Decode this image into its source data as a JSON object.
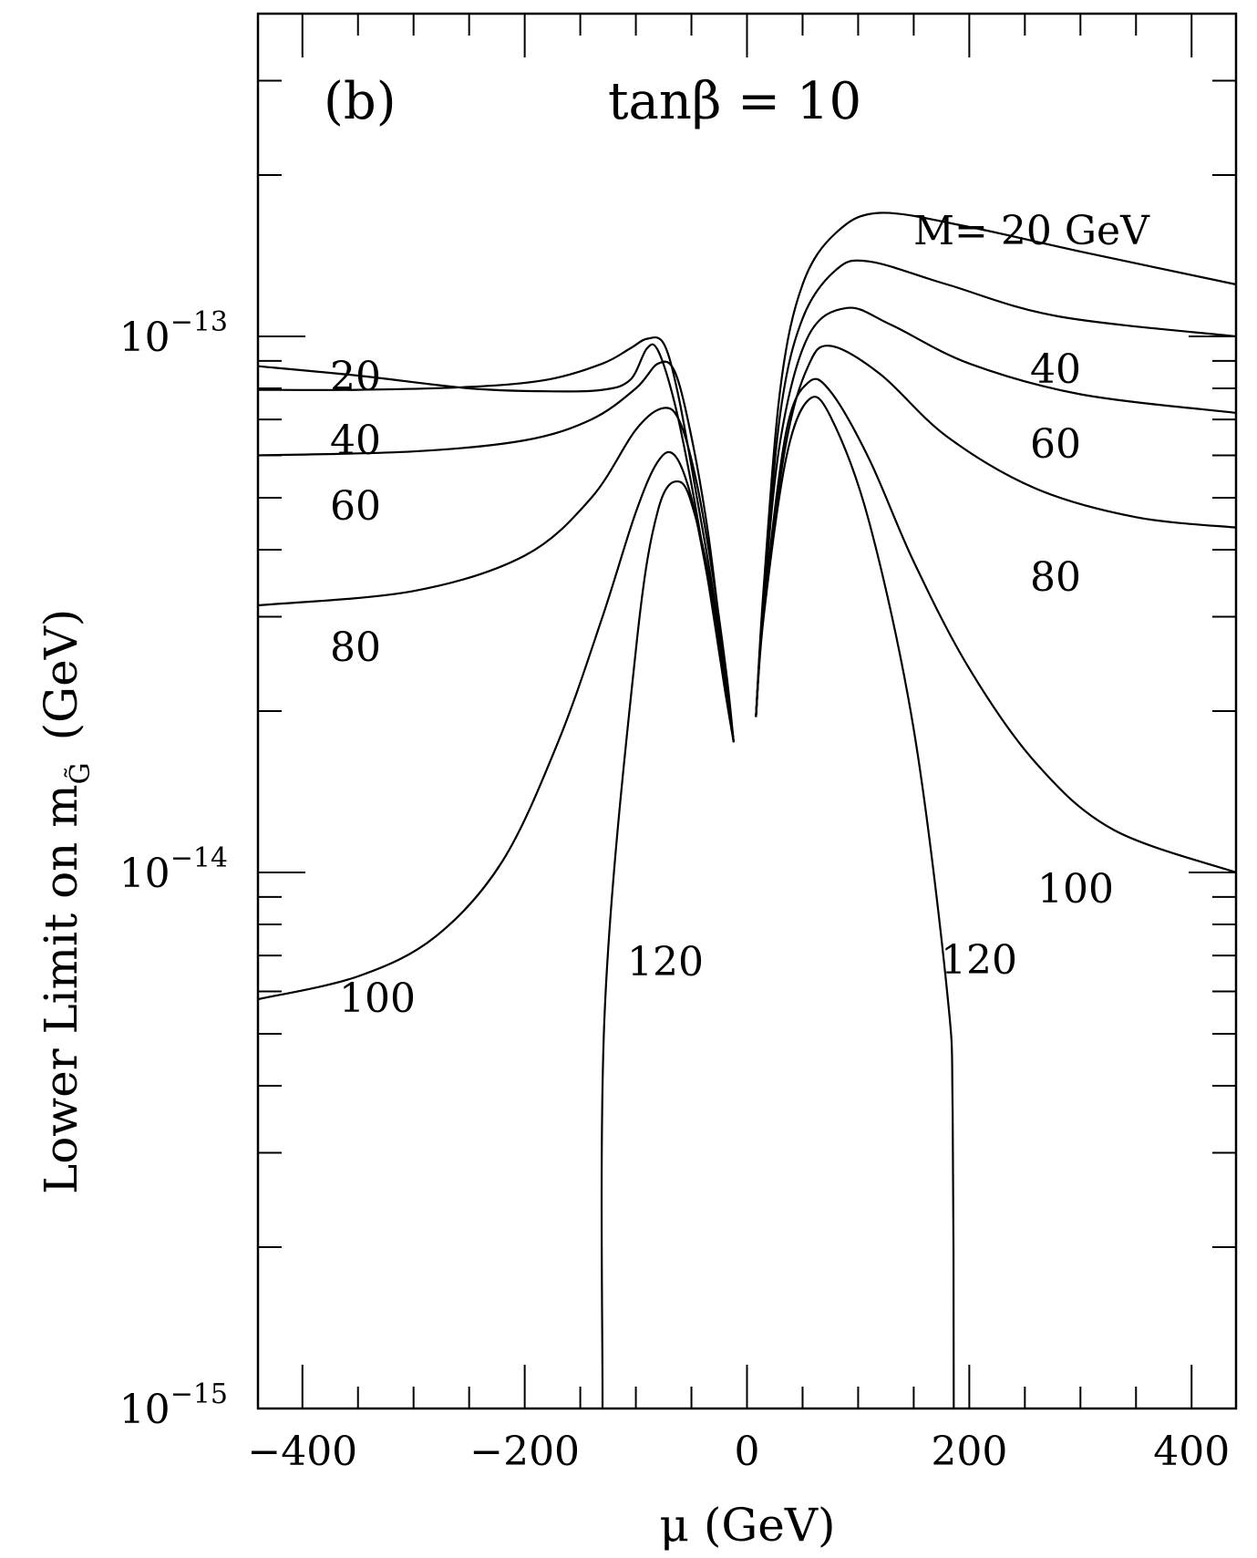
{
  "chart_data": {
    "type": "line",
    "panel_label": "(b)",
    "title": "tanβ = 10",
    "xlabel": "μ (GeV)",
    "ylabel": "Lower Limit on m_G̃ (GeV)",
    "ylabel_prefix": "Lower Limit on m",
    "ylabel_sub": "G̃",
    "ylabel_suffix": "(GeV)",
    "xlim": [
      -440,
      440
    ],
    "ylim": [
      1e-15,
      4e-13
    ],
    "yscale": "log",
    "grid": false,
    "x_ticks": [
      {
        "value": -400,
        "label": "−400"
      },
      {
        "value": -200,
        "label": "−200"
      },
      {
        "value": 0,
        "label": "0"
      },
      {
        "value": 200,
        "label": "200"
      },
      {
        "value": 400,
        "label": "400"
      }
    ],
    "y_ticks": [
      {
        "value": 1e-13,
        "label": "10",
        "exponent": "−13"
      },
      {
        "value": 1e-14,
        "label": "10",
        "exponent": "−14"
      },
      {
        "value": 1e-15,
        "label": "10",
        "exponent": "−15"
      }
    ],
    "legend_label": "M= 20 GeV",
    "series": [
      {
        "name": "20",
        "right_label": "M= 20 GeV",
        "left_label": "20",
        "left": [
          [
            -440,
            8.8e-14
          ],
          [
            -350,
            8.45e-14
          ],
          [
            -250,
            8e-14
          ],
          [
            -180,
            7.9e-14
          ],
          [
            -130,
            7.95e-14
          ],
          [
            -105,
            8.3e-14
          ],
          [
            -90,
            9.5e-14
          ],
          [
            -80,
            9.4e-14
          ],
          [
            -65,
            7.5e-14
          ],
          [
            -50,
            5.3e-14
          ],
          [
            -35,
            3.5e-14
          ],
          [
            -20,
            2.2e-14
          ],
          [
            -12,
            1.75e-14
          ]
        ],
        "right": [
          [
            8,
            1.95e-14
          ],
          [
            15,
            3.4e-14
          ],
          [
            30,
            8e-14
          ],
          [
            50,
            1.25e-13
          ],
          [
            80,
            1.56e-13
          ],
          [
            120,
            1.7e-13
          ],
          [
            200,
            1.6e-13
          ],
          [
            300,
            1.44e-13
          ],
          [
            440,
            1.25e-13
          ]
        ]
      },
      {
        "name": "40",
        "right_label": "40",
        "left_label": "40",
        "left": [
          [
            -440,
            7.95e-14
          ],
          [
            -350,
            7.95e-14
          ],
          [
            -250,
            8.05e-14
          ],
          [
            -180,
            8.3e-14
          ],
          [
            -130,
            8.9e-14
          ],
          [
            -105,
            9.5e-14
          ],
          [
            -90,
            9.9e-14
          ],
          [
            -75,
            9.7e-14
          ],
          [
            -62,
            7.8e-14
          ],
          [
            -45,
            5e-14
          ],
          [
            -30,
            3.3e-14
          ],
          [
            -18,
            2.2e-14
          ],
          [
            -12,
            1.75e-14
          ]
        ],
        "right": [
          [
            8,
            1.95e-14
          ],
          [
            15,
            3.3e-14
          ],
          [
            30,
            7.2e-14
          ],
          [
            50,
            1.08e-13
          ],
          [
            80,
            1.33e-13
          ],
          [
            110,
            1.38e-13
          ],
          [
            180,
            1.25e-13
          ],
          [
            280,
            1.09e-13
          ],
          [
            440,
            1e-13
          ]
        ]
      },
      {
        "name": "60",
        "right_label": "60",
        "left_label": "60",
        "left": [
          [
            -440,
            6e-14
          ],
          [
            -300,
            6.1e-14
          ],
          [
            -200,
            6.4e-14
          ],
          [
            -140,
            7e-14
          ],
          [
            -100,
            8e-14
          ],
          [
            -80,
            8.9e-14
          ],
          [
            -65,
            8.6e-14
          ],
          [
            -50,
            6.5e-14
          ],
          [
            -35,
            4.3e-14
          ],
          [
            -22,
            2.6e-14
          ],
          [
            -12,
            1.75e-14
          ]
        ],
        "right": [
          [
            8,
            1.95e-14
          ],
          [
            15,
            3.2e-14
          ],
          [
            30,
            6.4e-14
          ],
          [
            55,
            1e-13
          ],
          [
            90,
            1.13e-13
          ],
          [
            130,
            1.05e-13
          ],
          [
            200,
            8.9e-14
          ],
          [
            300,
            7.8e-14
          ],
          [
            440,
            7.2e-14
          ]
        ]
      },
      {
        "name": "80",
        "right_label": "80",
        "left_label": "80",
        "left": [
          [
            -440,
            3.15e-14
          ],
          [
            -300,
            3.35e-14
          ],
          [
            -200,
            3.9e-14
          ],
          [
            -140,
            5e-14
          ],
          [
            -100,
            6.7e-14
          ],
          [
            -75,
            7.35e-14
          ],
          [
            -60,
            6.9e-14
          ],
          [
            -45,
            5.3e-14
          ],
          [
            -30,
            3.5e-14
          ],
          [
            -18,
            2.3e-14
          ],
          [
            -12,
            1.75e-14
          ]
        ],
        "right": [
          [
            8,
            1.95e-14
          ],
          [
            15,
            3.1e-14
          ],
          [
            35,
            6.3e-14
          ],
          [
            55,
            8.8e-14
          ],
          [
            75,
            9.6e-14
          ],
          [
            120,
            8.5e-14
          ],
          [
            180,
            6.5e-14
          ],
          [
            260,
            5.2e-14
          ],
          [
            350,
            4.6e-14
          ],
          [
            440,
            4.4e-14
          ]
        ]
      },
      {
        "name": "100",
        "right_label": "100",
        "left_label": "100",
        "left": [
          [
            -440,
            5.8e-15
          ],
          [
            -350,
            6.4e-15
          ],
          [
            -280,
            7.6e-15
          ],
          [
            -220,
            1.05e-14
          ],
          [
            -170,
            1.75e-14
          ],
          [
            -130,
            3e-14
          ],
          [
            -100,
            4.7e-14
          ],
          [
            -80,
            5.85e-14
          ],
          [
            -65,
            6e-14
          ],
          [
            -50,
            5e-14
          ],
          [
            -35,
            3.5e-14
          ],
          [
            -20,
            2.3e-14
          ],
          [
            -12,
            1.75e-14
          ]
        ],
        "right": [
          [
            8,
            1.95e-14
          ],
          [
            15,
            3.1e-14
          ],
          [
            35,
            6.6e-14
          ],
          [
            55,
            8.2e-14
          ],
          [
            75,
            7.9e-14
          ],
          [
            110,
            5.9e-14
          ],
          [
            150,
            3.8e-14
          ],
          [
            200,
            2.4e-14
          ],
          [
            260,
            1.6e-14
          ],
          [
            330,
            1.2e-14
          ],
          [
            440,
            1e-14
          ]
        ]
      },
      {
        "name": "120",
        "right_label": "120",
        "left_label": "120",
        "left": [
          [
            -130,
            1e-15
          ],
          [
            -128,
            5.5e-15
          ],
          [
            -100,
            2.6e-14
          ],
          [
            -80,
            4.75e-14
          ],
          [
            -60,
            5.35e-14
          ],
          [
            -45,
            4.5e-14
          ],
          [
            -30,
            3.2e-14
          ],
          [
            -18,
            2.2e-14
          ],
          [
            -12,
            1.75e-14
          ]
        ],
        "right": [
          [
            8,
            1.95e-14
          ],
          [
            15,
            3e-14
          ],
          [
            35,
            5.9e-14
          ],
          [
            55,
            7.6e-14
          ],
          [
            75,
            7.1e-14
          ],
          [
            110,
            4.5e-14
          ],
          [
            150,
            1.85e-14
          ],
          [
            180,
            6e-15
          ],
          [
            185,
            3.6e-15
          ],
          [
            186,
            1e-15
          ]
        ]
      }
    ]
  }
}
